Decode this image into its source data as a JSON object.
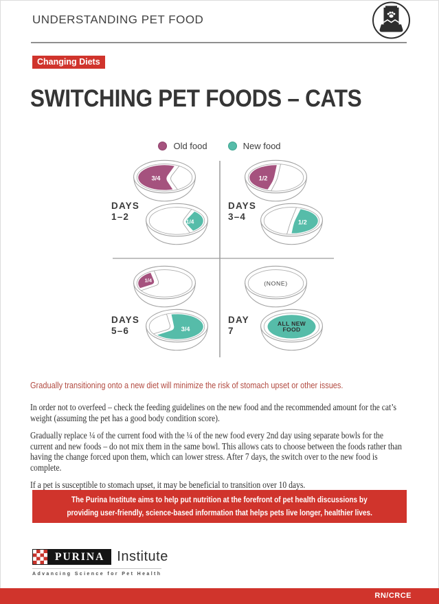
{
  "header": {
    "title": "UNDERSTANDING PET FOOD"
  },
  "badge": {
    "label": "Changing Diets"
  },
  "page_title": "SWITCHING PET FOODS – CATS",
  "legend": [
    {
      "label": "Old food",
      "color": "#A5527E"
    },
    {
      "label": "New food",
      "color": "#56BCA9"
    }
  ],
  "palette": {
    "old_food": "#A5527E",
    "new_food": "#56BCA9",
    "brand_red": "#D0342C",
    "lead_red": "#B24A40"
  },
  "diagram": {
    "quadrants": [
      {
        "day": [
          "DAYS",
          "1–2"
        ],
        "bowls": [
          {
            "food": "old",
            "shape": "three-quarter-left",
            "portion": "3/4"
          },
          {
            "food": "new",
            "shape": "quarter-right",
            "portion": "1/4"
          }
        ]
      },
      {
        "day": [
          "DAYS",
          "3–4"
        ],
        "bowls": [
          {
            "food": "old",
            "shape": "half-left",
            "portion": "1/2"
          },
          {
            "food": "new",
            "shape": "half-right",
            "portion": "1/2"
          }
        ]
      },
      {
        "day": [
          "DAYS",
          "5–6"
        ],
        "bowls": [
          {
            "food": "old",
            "shape": "quarter-left",
            "portion": "1/4"
          },
          {
            "food": "new",
            "shape": "three-quarter-right",
            "portion": "3/4"
          }
        ]
      },
      {
        "day": [
          "DAY",
          "7"
        ],
        "bowls": [
          {
            "food": "none",
            "shape": "none",
            "portion": "(NONE)"
          },
          {
            "food": "new",
            "shape": "full",
            "portion": "ALL NEW FOOD"
          }
        ]
      }
    ]
  },
  "lead": "Gradually transitioning onto a new diet will minimize the risk of stomach upset or other issues.",
  "paragraphs": [
    "In order not to overfeed – check the feeding guidelines on the new food and the recommended amount for the cat’s weight (assuming the pet has a good body condition score).",
    "Gradually replace ¼ of the current food with the ¼ of the new food every 2nd day using separate bowls for the current and new foods – do not mix them in the same bowl. This allows cats to choose between the foods rather than having the change forced upon them, which can lower stress. After 7 days, the switch over to the new food is complete.",
    "If a pet is susceptible to stomach upset, it may be beneficial to transition over 10 days."
  ],
  "callout": {
    "lines": [
      "The Purina Institute aims to help put nutrition at the forefront of pet health discussions by",
      "providing user-friendly, science-based information that helps pets live longer, healthier lives."
    ]
  },
  "footer": {
    "brand": "PURINA",
    "brand_suffix": "Institute",
    "tagline": "Advancing Science for Pet Health",
    "code": "RN/CRCE"
  }
}
